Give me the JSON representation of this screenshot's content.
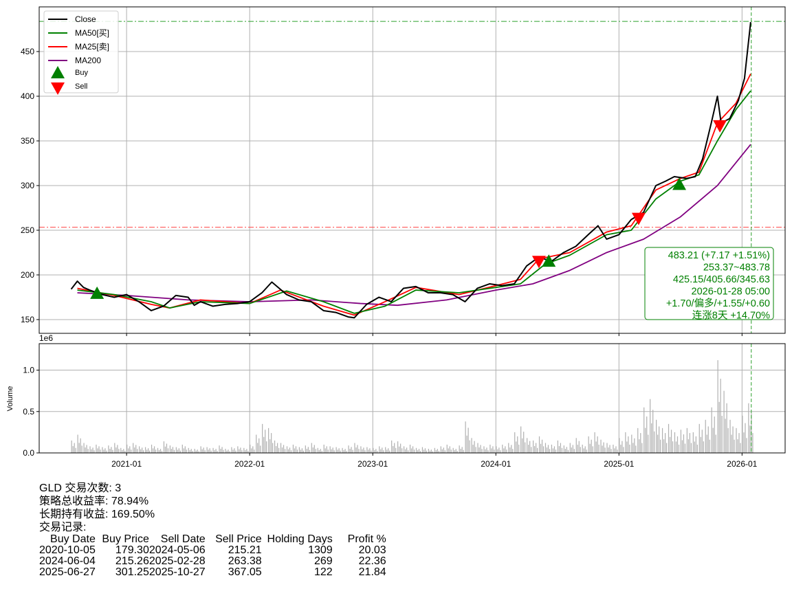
{
  "chart_data": [
    {
      "type": "line",
      "title": "",
      "xlabel": "",
      "ylabel": "",
      "xlim": [
        2020.29,
        2026.35
      ],
      "ylim": [
        134.6,
        500
      ],
      "grid": true,
      "legend_position": "top-left",
      "x_ticks": [
        {
          "v": 2021.0,
          "label": "2021-01"
        },
        {
          "v": 2022.0,
          "label": "2022-01"
        },
        {
          "v": 2023.0,
          "label": "2023-01"
        },
        {
          "v": 2024.0,
          "label": "2024-01"
        },
        {
          "v": 2025.0,
          "label": "2025-01"
        },
        {
          "v": 2026.0,
          "label": "2026-01"
        }
      ],
      "y_ticks": [
        150,
        200,
        250,
        300,
        350,
        400,
        450
      ],
      "series": [
        {
          "name": "Close",
          "color": "#000000",
          "points": [
            [
              2020.55,
              184
            ],
            [
              2020.6,
              193
            ],
            [
              2020.65,
              186
            ],
            [
              2020.7,
              183
            ],
            [
              2020.8,
              178
            ],
            [
              2020.9,
              175
            ],
            [
              2021.0,
              178
            ],
            [
              2021.1,
              170
            ],
            [
              2021.2,
              160
            ],
            [
              2021.3,
              165
            ],
            [
              2021.4,
              177
            ],
            [
              2021.5,
              175
            ],
            [
              2021.55,
              166
            ],
            [
              2021.6,
              170
            ],
            [
              2021.7,
              165
            ],
            [
              2021.8,
              167
            ],
            [
              2021.9,
              168
            ],
            [
              2022.0,
              170
            ],
            [
              2022.1,
              180
            ],
            [
              2022.18,
              192
            ],
            [
              2022.3,
              178
            ],
            [
              2022.4,
              172
            ],
            [
              2022.5,
              170
            ],
            [
              2022.6,
              160
            ],
            [
              2022.7,
              158
            ],
            [
              2022.8,
              153
            ],
            [
              2022.85,
              152
            ],
            [
              2022.95,
              167
            ],
            [
              2023.05,
              175
            ],
            [
              2023.15,
              170
            ],
            [
              2023.25,
              185
            ],
            [
              2023.35,
              187
            ],
            [
              2023.45,
              180
            ],
            [
              2023.55,
              180
            ],
            [
              2023.65,
              178
            ],
            [
              2023.75,
              170
            ],
            [
              2023.85,
              185
            ],
            [
              2023.95,
              190
            ],
            [
              2024.05,
              188
            ],
            [
              2024.15,
              190
            ],
            [
              2024.25,
              210
            ],
            [
              2024.35,
              220
            ],
            [
              2024.45,
              215
            ],
            [
              2024.55,
              225
            ],
            [
              2024.65,
              232
            ],
            [
              2024.75,
              245
            ],
            [
              2024.83,
              255
            ],
            [
              2024.9,
              240
            ],
            [
              2025.0,
              245
            ],
            [
              2025.1,
              262
            ],
            [
              2025.2,
              270
            ],
            [
              2025.3,
              300
            ],
            [
              2025.38,
              305
            ],
            [
              2025.45,
              310
            ],
            [
              2025.55,
              308
            ],
            [
              2025.62,
              310
            ],
            [
              2025.68,
              330
            ],
            [
              2025.75,
              370
            ],
            [
              2025.8,
              400
            ],
            [
              2025.83,
              370
            ],
            [
              2025.9,
              375
            ],
            [
              2025.97,
              395
            ],
            [
              2026.02,
              420
            ],
            [
              2026.07,
              483
            ]
          ]
        },
        {
          "name": "MA50[买]",
          "color": "#008000",
          "points": [
            [
              2020.6,
              183
            ],
            [
              2020.9,
              178
            ],
            [
              2021.2,
              170
            ],
            [
              2021.35,
              163
            ],
            [
              2021.6,
              170
            ],
            [
              2022.0,
              168
            ],
            [
              2022.3,
              182
            ],
            [
              2022.6,
              170
            ],
            [
              2022.85,
              157
            ],
            [
              2023.1,
              165
            ],
            [
              2023.35,
              183
            ],
            [
              2023.7,
              180
            ],
            [
              2024.0,
              186
            ],
            [
              2024.2,
              190
            ],
            [
              2024.4,
              212
            ],
            [
              2024.6,
              222
            ],
            [
              2024.9,
              245
            ],
            [
              2025.1,
              250
            ],
            [
              2025.3,
              285
            ],
            [
              2025.5,
              305
            ],
            [
              2025.65,
              312
            ],
            [
              2025.8,
              350
            ],
            [
              2025.95,
              385
            ],
            [
              2026.07,
              406
            ]
          ]
        },
        {
          "name": "MA25[卖]",
          "color": "#ff0000",
          "points": [
            [
              2020.6,
              185
            ],
            [
              2020.9,
              177
            ],
            [
              2021.2,
              167
            ],
            [
              2021.35,
              163
            ],
            [
              2021.6,
              172
            ],
            [
              2022.0,
              168
            ],
            [
              2022.25,
              183
            ],
            [
              2022.6,
              165
            ],
            [
              2022.85,
              155
            ],
            [
              2023.1,
              170
            ],
            [
              2023.35,
              186
            ],
            [
              2023.7,
              178
            ],
            [
              2024.0,
              188
            ],
            [
              2024.2,
              195
            ],
            [
              2024.35,
              218
            ],
            [
              2024.6,
              225
            ],
            [
              2024.9,
              248
            ],
            [
              2025.1,
              255
            ],
            [
              2025.3,
              295
            ],
            [
              2025.5,
              308
            ],
            [
              2025.65,
              315
            ],
            [
              2025.8,
              370
            ],
            [
              2025.95,
              392
            ],
            [
              2026.07,
              425
            ]
          ]
        },
        {
          "name": "MA200",
          "color": "#800080",
          "points": [
            [
              2020.6,
              180
            ],
            [
              2021.0,
              177
            ],
            [
              2021.5,
              172
            ],
            [
              2022.0,
              170
            ],
            [
              2022.5,
              172
            ],
            [
              2022.9,
              168
            ],
            [
              2023.2,
              166
            ],
            [
              2023.6,
              172
            ],
            [
              2024.0,
              183
            ],
            [
              2024.3,
              190
            ],
            [
              2024.6,
              205
            ],
            [
              2024.9,
              225
            ],
            [
              2025.2,
              240
            ],
            [
              2025.5,
              265
            ],
            [
              2025.8,
              300
            ],
            [
              2026.07,
              346
            ]
          ]
        }
      ],
      "markers": [
        {
          "name": "Buy",
          "color": "#008000",
          "shape": "triangle-up",
          "points": [
            [
              2020.76,
              179.3
            ],
            [
              2024.43,
              215.26
            ],
            [
              2025.49,
              301.25
            ]
          ]
        },
        {
          "name": "Sell",
          "color": "#ff0000",
          "shape": "triangle-down",
          "points": [
            [
              2024.35,
              215.21
            ],
            [
              2025.16,
              263.38
            ],
            [
              2025.82,
              367.05
            ]
          ]
        }
      ],
      "hlines": [
        {
          "value": 483.78,
          "color": "#2ca02c",
          "style": "dashdot"
        },
        {
          "value": 253.37,
          "color": "#ff4444",
          "style": "dashdot"
        }
      ],
      "vline": {
        "value": 2026.075,
        "color": "#2ca02c",
        "style": "dashed"
      },
      "annotation": [
        "483.21 (+7.17 +1.51%)",
        "253.37~483.78",
        "425.15/405.66/345.63",
        "2026-01-28 05:00",
        "+1.70/偏多/+1.55/+0.60",
        "连涨8天 +14.70%"
      ],
      "annotation_color": "#008000"
    },
    {
      "type": "bar",
      "ylabel": "Volume",
      "scale_label": "1e6",
      "ylim": [
        0,
        1.32
      ],
      "y_ticks": [
        {
          "v": 0,
          "label": "0.0"
        },
        {
          "v": 0.5,
          "label": "0.5"
        },
        {
          "v": 1.0,
          "label": "1.0"
        }
      ],
      "bar_color": "#b0b0b0",
      "x_start": 2020.55,
      "x_step": 0.05,
      "values": [
        0.15,
        0.22,
        0.12,
        0.08,
        0.1,
        0.07,
        0.09,
        0.12,
        0.06,
        0.1,
        0.12,
        0.08,
        0.07,
        0.1,
        0.06,
        0.14,
        0.09,
        0.07,
        0.1,
        0.06,
        0.05,
        0.08,
        0.07,
        0.06,
        0.09,
        0.05,
        0.07,
        0.08,
        0.06,
        0.1,
        0.22,
        0.35,
        0.3,
        0.15,
        0.12,
        0.08,
        0.1,
        0.07,
        0.09,
        0.12,
        0.06,
        0.1,
        0.08,
        0.07,
        0.06,
        0.09,
        0.12,
        0.08,
        0.07,
        0.06,
        0.08,
        0.07,
        0.15,
        0.14,
        0.08,
        0.1,
        0.06,
        0.07,
        0.05,
        0.06,
        0.08,
        0.1,
        0.06,
        0.09,
        0.38,
        0.18,
        0.12,
        0.08,
        0.1,
        0.08,
        0.1,
        0.12,
        0.25,
        0.32,
        0.18,
        0.15,
        0.2,
        0.12,
        0.1,
        0.15,
        0.09,
        0.12,
        0.18,
        0.1,
        0.2,
        0.25,
        0.16,
        0.12,
        0.1,
        0.18,
        0.25,
        0.22,
        0.3,
        0.55,
        0.65,
        0.4,
        0.3,
        0.35,
        0.25,
        0.28,
        0.3,
        0.25,
        0.35,
        0.4,
        0.55,
        1.12,
        0.75,
        0.4,
        0.3,
        0.45,
        0.6
      ]
    }
  ],
  "summary": {
    "line1": "GLD 交易次数: 3",
    "line2": "策略总收益率: 78.94%",
    "line3": "长期持有收益: 169.50%",
    "line4": "交易记录:"
  },
  "trades": {
    "headers": [
      "Buy Date",
      "Buy Price",
      "Sell Date",
      "Sell Price",
      "Holding Days",
      "Profit %"
    ],
    "rows": [
      [
        "2020-10-05",
        "179.30",
        "2024-05-06",
        "215.21",
        "1309",
        "20.03"
      ],
      [
        "2024-06-04",
        "215.26",
        "2025-02-28",
        "263.38",
        "269",
        "22.36"
      ],
      [
        "2025-06-27",
        "301.25",
        "2025-10-27",
        "367.05",
        "122",
        "21.84"
      ]
    ]
  }
}
